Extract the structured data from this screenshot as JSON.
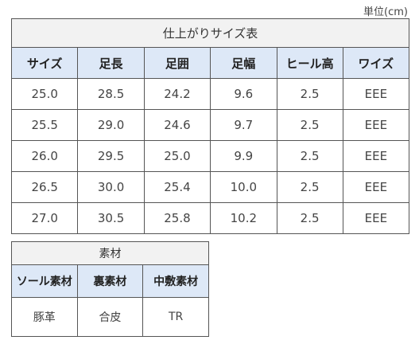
{
  "unit_label": "単位(cm)",
  "size_table": {
    "title": "仕上がりサイズ表",
    "headers": [
      "サイズ",
      "足長",
      "足囲",
      "足幅",
      "ヒール高",
      "ワイズ"
    ],
    "rows": [
      [
        "25.0",
        "28.5",
        "24.2",
        "9.6",
        "2.5",
        "EEE"
      ],
      [
        "25.5",
        "29.0",
        "24.6",
        "9.7",
        "2.5",
        "EEE"
      ],
      [
        "26.0",
        "29.5",
        "25.0",
        "9.9",
        "2.5",
        "EEE"
      ],
      [
        "26.5",
        "30.0",
        "25.4",
        "10.0",
        "2.5",
        "EEE"
      ],
      [
        "27.0",
        "30.5",
        "25.8",
        "10.2",
        "2.5",
        "EEE"
      ]
    ]
  },
  "material_table": {
    "title": "素材",
    "headers": [
      "ソール素材",
      "裏素材",
      "中敷素材"
    ],
    "rows": [
      [
        "豚革",
        "合皮",
        "TR"
      ]
    ]
  }
}
